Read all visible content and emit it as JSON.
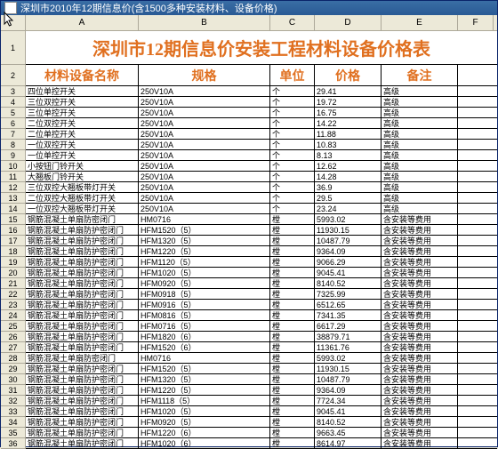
{
  "window": {
    "title": "深圳市2010年12期信息价(含1500多种安装材料、设备价格)"
  },
  "columns": [
    "A",
    "B",
    "C",
    "D",
    "E",
    "F"
  ],
  "title": "深圳市12期信息价安装工程材料设备价格表",
  "headers": {
    "name": "材料设备名称",
    "spec": "规格",
    "unit": "单位",
    "price": "价格",
    "remark": "备注"
  },
  "rows": [
    {
      "n": "四位单控开关",
      "s": "250V10A",
      "u": "个",
      "p": "29.41",
      "r": "高级"
    },
    {
      "n": "三位双控开关",
      "s": "250V10A",
      "u": "个",
      "p": "19.72",
      "r": "高级"
    },
    {
      "n": "三位单控开关",
      "s": "250V10A",
      "u": "个",
      "p": "16.75",
      "r": "高级"
    },
    {
      "n": "二位双控开关",
      "s": "250V10A",
      "u": "个",
      "p": "14.22",
      "r": "高级"
    },
    {
      "n": "二位单控开关",
      "s": "250V10A",
      "u": "个",
      "p": "11.88",
      "r": "高级"
    },
    {
      "n": "一位双控开关",
      "s": "250V10A",
      "u": "个",
      "p": "10.83",
      "r": "高级"
    },
    {
      "n": "一位单控开关",
      "s": "250V10A",
      "u": "个",
      "p": "8.13",
      "r": "高级"
    },
    {
      "n": "小按钮门铃开关",
      "s": "250V10A",
      "u": "个",
      "p": "12.62",
      "r": "高级"
    },
    {
      "n": "大翘板门铃开关",
      "s": "250V10A",
      "u": "个",
      "p": "14.28",
      "r": "高级"
    },
    {
      "n": "三位双控大翘板带灯开关",
      "s": "250V10A",
      "u": "个",
      "p": "36.9",
      "r": "高级"
    },
    {
      "n": "二位双控大翘板带灯开关",
      "s": "250V10A",
      "u": "个",
      "p": "29.5",
      "r": "高级"
    },
    {
      "n": "一位双控大翘板带灯开关",
      "s": "250V10A",
      "u": "个",
      "p": "23.24",
      "r": "高级"
    },
    {
      "n": "钢筋混凝土单扇防密闭门",
      "s": "HM0716",
      "u": "樘",
      "p": "5993.02",
      "r": "含安装等费用"
    },
    {
      "n": "钢筋混凝土单扇防护密闭门",
      "s": "HFM1520（5）",
      "u": "樘",
      "p": "11930.15",
      "r": "含安装等费用"
    },
    {
      "n": "钢筋混凝土单扇防护密闭门",
      "s": "HFM1320（5）",
      "u": "樘",
      "p": "10487.79",
      "r": "含安装等费用"
    },
    {
      "n": "钢筋混凝土单扇防护密闭门",
      "s": "HFM1220（5）",
      "u": "樘",
      "p": "9364.09",
      "r": "含安装等费用"
    },
    {
      "n": "钢筋混凝土单扇防护密闭门",
      "s": "HFM1120（5）",
      "u": "樘",
      "p": "9066.29",
      "r": "含安装等费用"
    },
    {
      "n": "钢筋混凝土单扇防护密闭门",
      "s": "HFM1020（5）",
      "u": "樘",
      "p": "9045.41",
      "r": "含安装等费用"
    },
    {
      "n": "钢筋混凝土单扇防护密闭门",
      "s": "HFM0920（5）",
      "u": "樘",
      "p": "8140.52",
      "r": "含安装等费用"
    },
    {
      "n": "钢筋混凝土单扇防护密闭门",
      "s": "HFM0918（5）",
      "u": "樘",
      "p": "7325.99",
      "r": "含安装等费用"
    },
    {
      "n": "钢筋混凝土单扇防护密闭门",
      "s": "HFM0916（5）",
      "u": "樘",
      "p": "6512.65",
      "r": "含安装等费用"
    },
    {
      "n": "钢筋混凝土单扇防护密闭门",
      "s": "HFM0816（5）",
      "u": "樘",
      "p": "7341.35",
      "r": "含安装等费用"
    },
    {
      "n": "钢筋混凝土单扇防护密闭门",
      "s": "HFM0716（5）",
      "u": "樘",
      "p": "6617.29",
      "r": "含安装等费用"
    },
    {
      "n": "钢筋混凝土单扇防护密闭门",
      "s": "HFM1820（6）",
      "u": "樘",
      "p": "38879.71",
      "r": "含安装等费用"
    },
    {
      "n": "钢筋混凝土单扇防护密闭门",
      "s": "HFM1520（6）",
      "u": "樘",
      "p": "11361.76",
      "r": "含安装等费用"
    },
    {
      "n": "钢筋混凝土单扇防密闭门",
      "s": "HM0716",
      "u": "樘",
      "p": "5993.02",
      "r": "含安装等费用"
    },
    {
      "n": "钢筋混凝土单扇防护密闭门",
      "s": "HFM1520（5）",
      "u": "樘",
      "p": "11930.15",
      "r": "含安装等费用"
    },
    {
      "n": "钢筋混凝土单扇防护密闭门",
      "s": "HFM1320（5）",
      "u": "樘",
      "p": "10487.79",
      "r": "含安装等费用"
    },
    {
      "n": "钢筋混凝土单扇防护密闭门",
      "s": "HFM1220（5）",
      "u": "樘",
      "p": "9364.09",
      "r": "含安装等费用"
    },
    {
      "n": "钢筋混凝土单扇防护密闭门",
      "s": "HFM1118（5）",
      "u": "樘",
      "p": "7724.34",
      "r": "含安装等费用"
    },
    {
      "n": "钢筋混凝土单扇防护密闭门",
      "s": "HFM1020（5）",
      "u": "樘",
      "p": "9045.41",
      "r": "含安装等费用"
    },
    {
      "n": "钢筋混凝土单扇防护密闭门",
      "s": "HFM0920（5）",
      "u": "樘",
      "p": "8140.52",
      "r": "含安装等费用"
    },
    {
      "n": "钢筋混凝土单扇防护密闭门",
      "s": "HFM1220（6）",
      "u": "樘",
      "p": "9663.45",
      "r": "含安装等费用"
    },
    {
      "n": "钢筋混凝土单扇防护密闭门",
      "s": "HFM1020（6）",
      "u": "樘",
      "p": "8614.97",
      "r": "含安装等费用"
    }
  ]
}
